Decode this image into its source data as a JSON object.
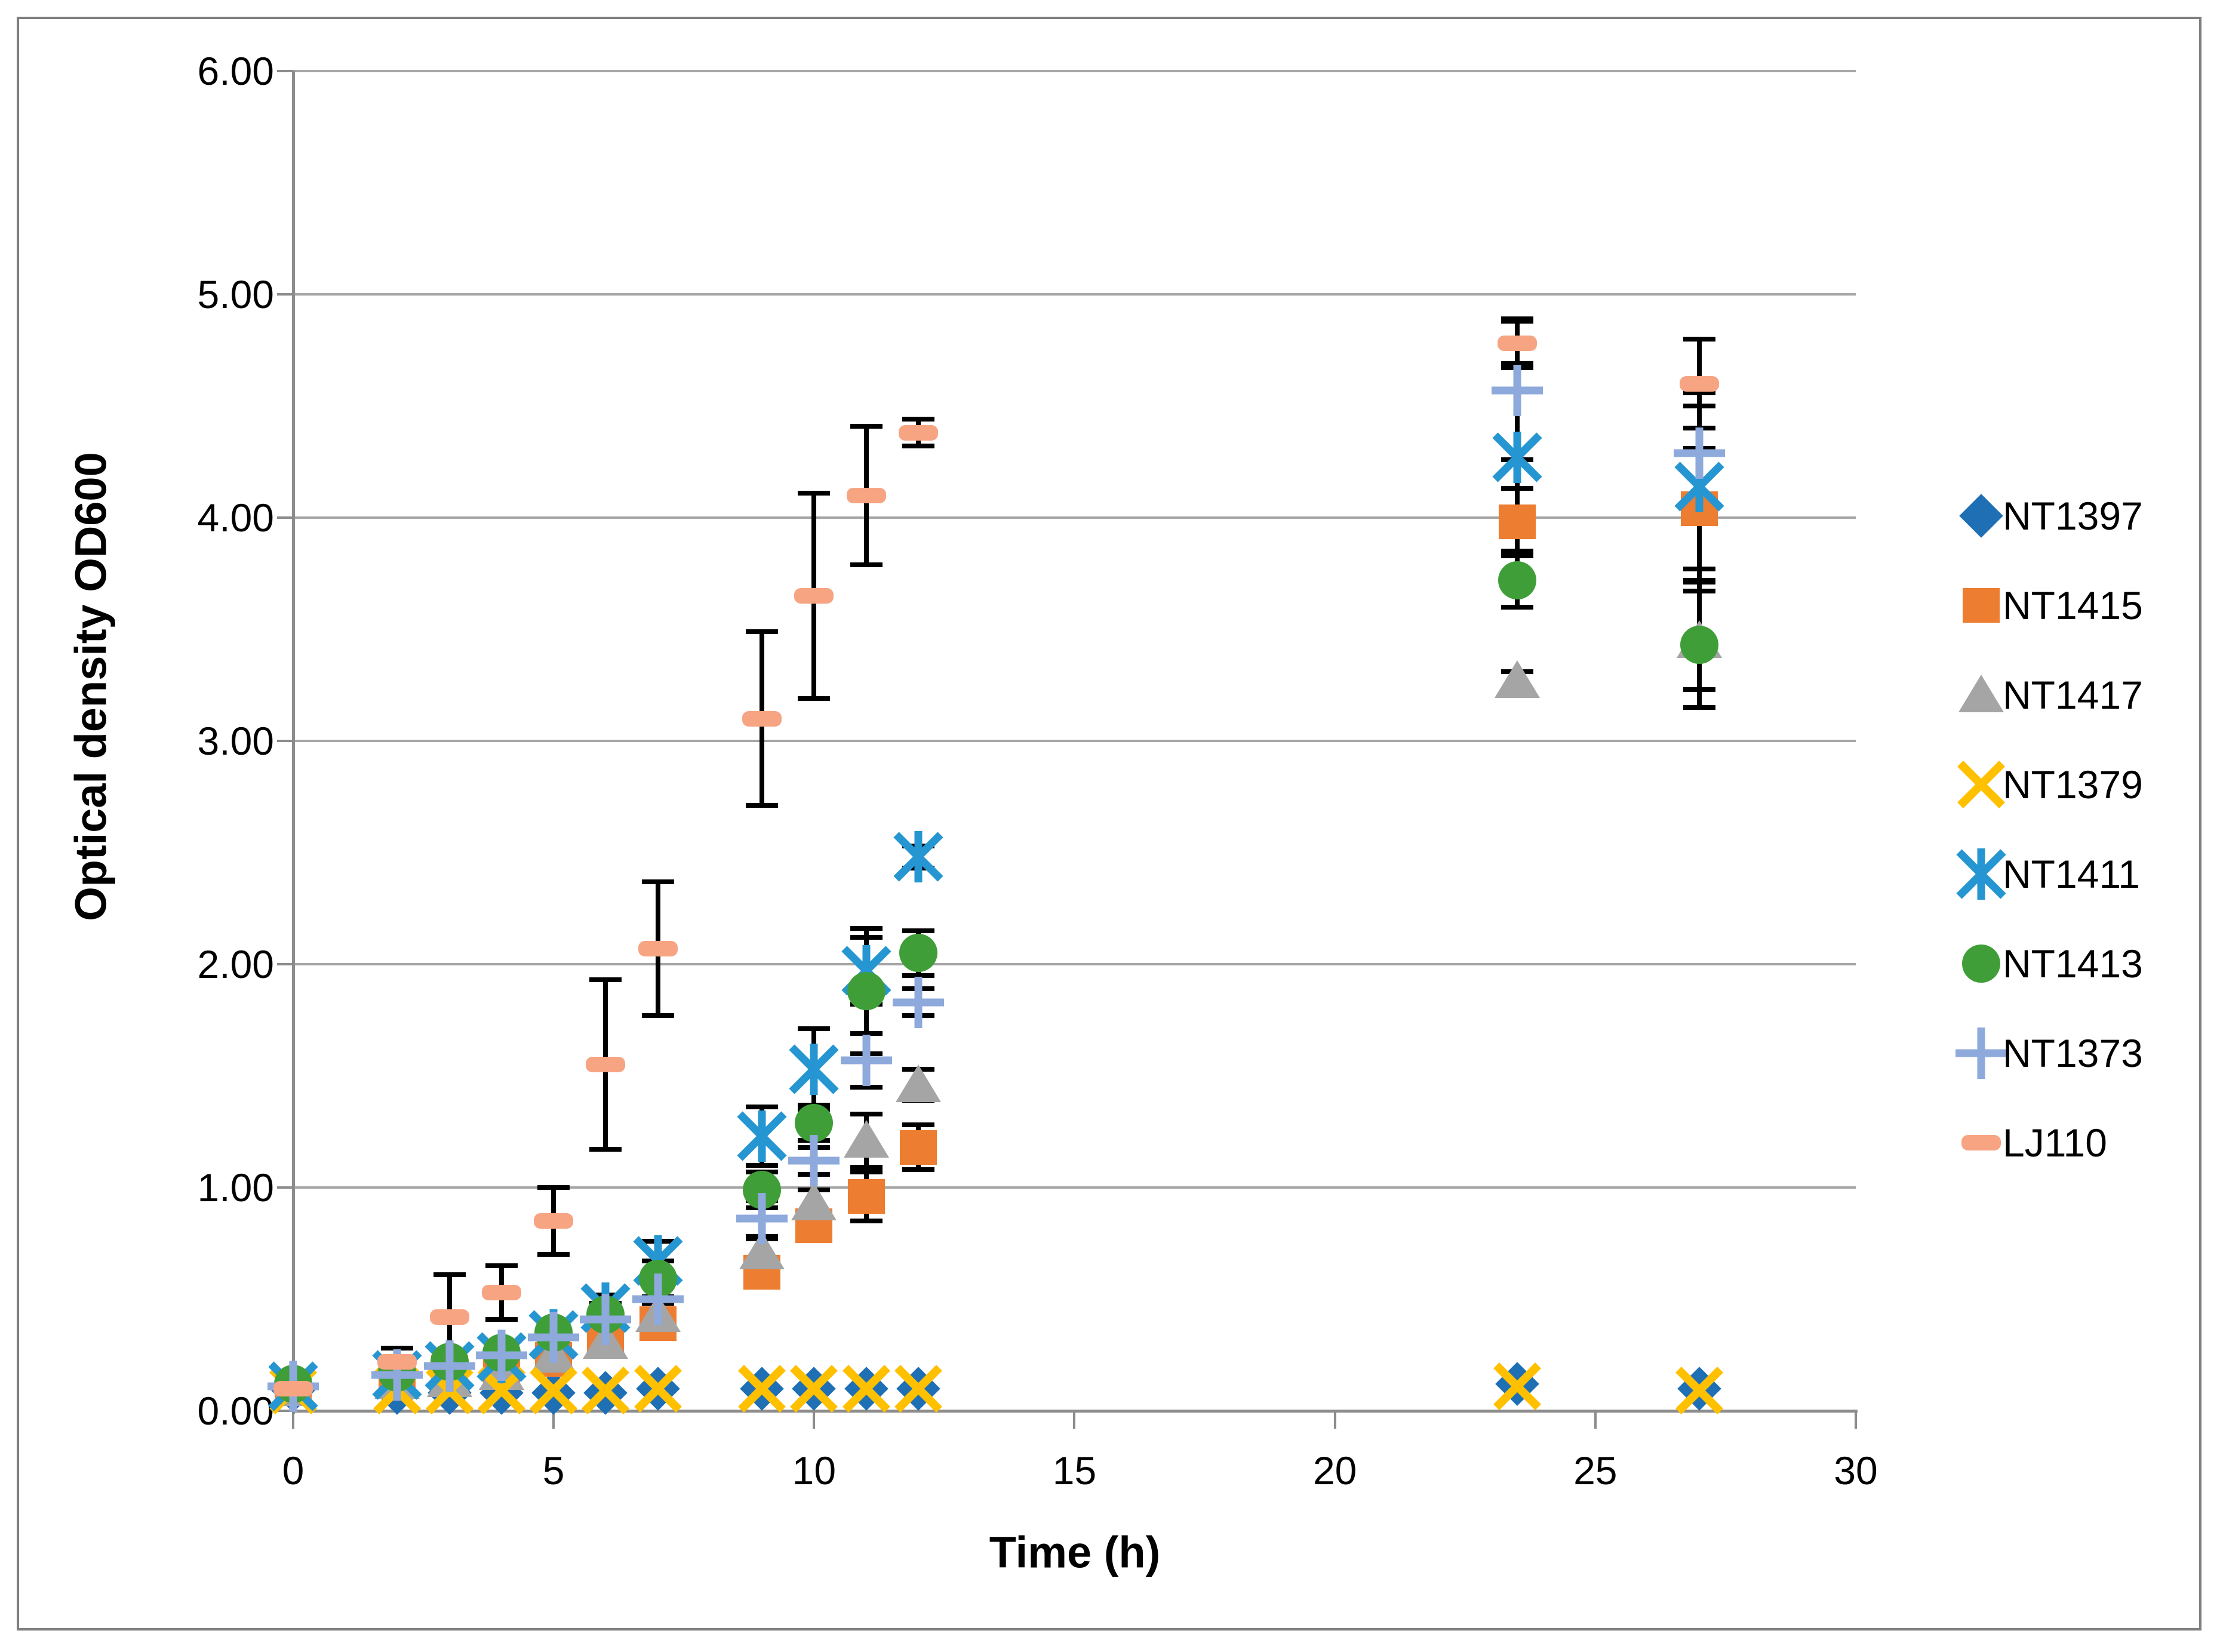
{
  "figure": {
    "y_axis_title": "Optical density OD600",
    "x_axis_title": "Time (h)",
    "background_color": "#ffffff",
    "border_color": "#7f7f7f",
    "grid_color": "#a6a6a6",
    "axis_color": "#8c8c8c",
    "error_bar_color": "#000000"
  },
  "chart_data": {
    "type": "scatter",
    "title": "",
    "xlabel": "Time (h)",
    "ylabel": "Optical density OD600",
    "xlim": [
      0,
      30
    ],
    "ylim": [
      0,
      6
    ],
    "x_ticks": [
      0,
      5,
      10,
      15,
      20,
      25,
      30
    ],
    "y_ticks": [
      "0.00",
      "1.00",
      "2.00",
      "3.00",
      "4.00",
      "5.00",
      "6.00"
    ],
    "grid": "horizontal",
    "legend_position": "right",
    "x": [
      0,
      2,
      3,
      4,
      5,
      6,
      7,
      9,
      10,
      11,
      12,
      23.5,
      27
    ],
    "series": [
      {
        "name": "NT1397",
        "marker": "diamond",
        "color": "#1f6fb5",
        "values": [
          0.09,
          0.08,
          0.08,
          0.08,
          0.08,
          0.08,
          0.1,
          0.1,
          0.1,
          0.1,
          0.1,
          0.12,
          0.1
        ],
        "errors": [
          0,
          0,
          0,
          0,
          0,
          0,
          0,
          0,
          0,
          0,
          0,
          0,
          0
        ]
      },
      {
        "name": "NT1415",
        "marker": "square",
        "color": "#ed7d31",
        "values": [
          0.1,
          0.14,
          0.17,
          0.2,
          0.23,
          0.32,
          0.39,
          0.62,
          0.83,
          0.96,
          1.18,
          3.98,
          4.04
        ],
        "errors": [
          0,
          0.02,
          0.02,
          0.03,
          0.03,
          0.04,
          0.04,
          0.05,
          0.05,
          0.11,
          0.1,
          0.15,
          0.27
        ]
      },
      {
        "name": "NT1417",
        "marker": "triangle",
        "color": "#a5a5a5",
        "values": [
          0.1,
          0.13,
          0.14,
          0.17,
          0.25,
          0.31,
          0.43,
          0.71,
          0.93,
          1.21,
          1.46,
          3.27,
          3.45
        ],
        "errors": [
          0,
          0.02,
          0.02,
          0.03,
          0.03,
          0.04,
          0.05,
          0.06,
          0.06,
          0.12,
          0.07,
          0.04,
          0.22
        ]
      },
      {
        "name": "NT1379",
        "marker": "x",
        "color": "#ffc000",
        "values": [
          0.09,
          0.09,
          0.09,
          0.09,
          0.09,
          0.09,
          0.1,
          0.1,
          0.1,
          0.1,
          0.1,
          0.11,
          0.09
        ],
        "errors": [
          0,
          0,
          0,
          0,
          0,
          0,
          0,
          0,
          0,
          0,
          0,
          0,
          0
        ]
      },
      {
        "name": "NT1411",
        "marker": "asterisk",
        "color": "#2596d1",
        "values": [
          0.11,
          0.16,
          0.2,
          0.24,
          0.34,
          0.46,
          0.67,
          1.23,
          1.53,
          1.97,
          2.48,
          4.27,
          4.14
        ],
        "errors": [
          0,
          0.02,
          0.03,
          0.04,
          0.05,
          0.06,
          0.09,
          0.13,
          0.18,
          0.15,
          0.05,
          0.42,
          0.42
        ]
      },
      {
        "name": "NT1413",
        "marker": "circle",
        "color": "#3f9e38",
        "values": [
          0.12,
          0.17,
          0.22,
          0.26,
          0.35,
          0.43,
          0.59,
          0.99,
          1.29,
          1.88,
          2.05,
          3.72,
          3.43
        ],
        "errors": [
          0,
          0.02,
          0.03,
          0.04,
          0.04,
          0.05,
          0.08,
          0.08,
          0.08,
          0.28,
          0.1,
          0.12,
          0.28
        ]
      },
      {
        "name": "NT1373",
        "marker": "plus",
        "color": "#8ea9db",
        "values": [
          0.11,
          0.16,
          0.2,
          0.25,
          0.33,
          0.41,
          0.5,
          0.86,
          1.12,
          1.57,
          1.83,
          4.57,
          4.29
        ],
        "errors": [
          0,
          0.02,
          0.03,
          0.04,
          0.05,
          0.06,
          0.08,
          0.08,
          0.06,
          0.12,
          0.06,
          0.31,
          0.21
        ]
      },
      {
        "name": "LJ110",
        "marker": "dash",
        "color": "#f7a483",
        "values": [
          0.1,
          0.22,
          0.42,
          0.53,
          0.85,
          1.55,
          2.07,
          3.1,
          3.65,
          4.1,
          4.38,
          4.78,
          4.6
        ],
        "errors": [
          0.02,
          0.06,
          0.19,
          0.12,
          0.15,
          0.38,
          0.3,
          0.39,
          0.46,
          0.31,
          0.06,
          0.11,
          0.2
        ]
      }
    ]
  }
}
